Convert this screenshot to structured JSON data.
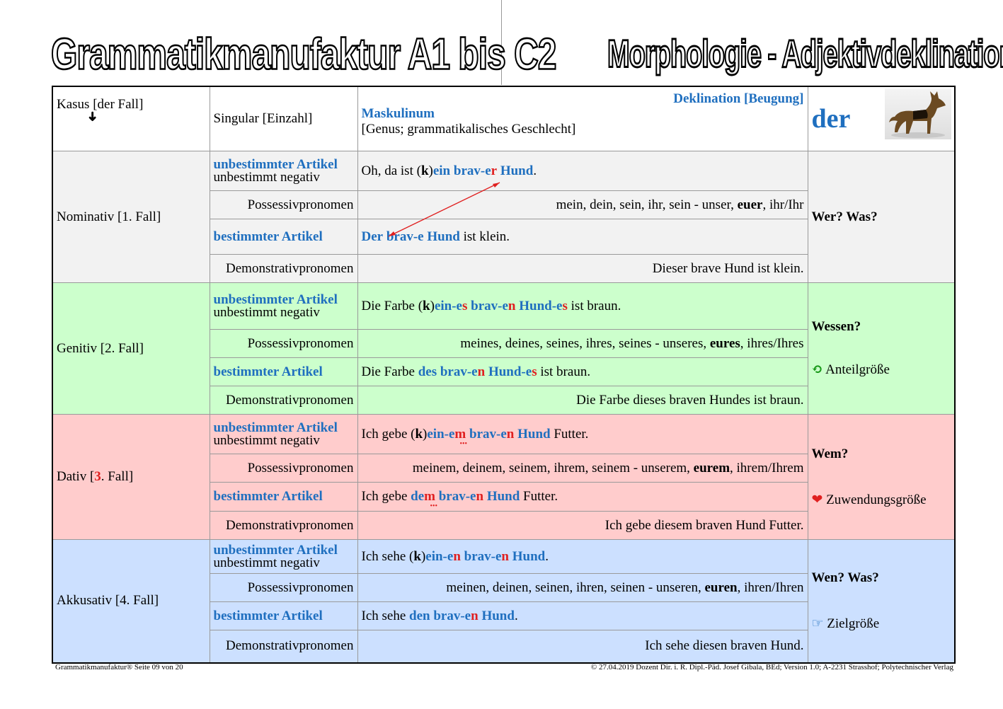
{
  "title_left": "Grammatikmanufaktur A1 bis C2",
  "title_right": "Morphologie - Adjektivdeklination I",
  "header": {
    "kasus": "Kasus [der Fall]",
    "arrow": "➜",
    "singular": "Singular [Einzahl]",
    "deklination": "Deklination [Beugung]",
    "maskulinum": "Maskulinum",
    "genus": "[Genus; grammatikalisches Geschlecht]",
    "article": "der"
  },
  "labels": {
    "unbest": "unbestimmter Artikel",
    "unbest_neg": "unbestimmt negativ",
    "poss": "Possessivpronomen",
    "best": "bestimmter Artikel",
    "demo": "Demonstrativpronomen"
  },
  "nom": {
    "case": "Nominativ [1. Fall]",
    "q": "Wer? Was?",
    "poss": "mein, dein, sein, ihr, sein - unser, ",
    "poss_b": "euer",
    "poss_end": ", ihr/Ihr",
    "demo": "Dieser brave Hund ist klein."
  },
  "gen": {
    "case": "Genitiv [2. Fall]",
    "q": "Wessen?",
    "extra": "Anteilgröße",
    "poss": "meines, deines, seines, ihres, seines - unseres, ",
    "poss_b": "eures",
    "poss_end": ", ihres/Ihres",
    "demo": "Die Farbe dieses braven Hundes ist braun."
  },
  "dat": {
    "case_a": "Dativ [",
    "case_n": "3",
    "case_b": ". Fall]",
    "q": "Wem?",
    "extra": "Zuwendungsgröße",
    "poss": "meinem, deinem, seinem, ihrem, seinem - unserem, ",
    "poss_b": "eurem",
    "poss_end": ", ihrem/Ihrem",
    "demo": "Ich gebe diesem braven Hund Futter."
  },
  "akk": {
    "case": "Akkusativ [4. Fall]",
    "q": "Wen? Was?",
    "extra": "Zielgröße",
    "poss": "meinen, deinen, seinen, ihren, seinen - unseren, ",
    "poss_b": "euren",
    "poss_end": ", ihren/Ihren",
    "demo": "Ich sehe diesen braven Hund."
  },
  "footer": {
    "left": "Grammatikmanufaktur®     Seite 09 von 20",
    "right": "© 27.04.2019 Dozent Dir. i. R. Dipl.-Päd. Josef Gibala, BEd; Version 1.0; A-2231 Strasshof; Polytechnischer Verlag"
  },
  "colors": {
    "blue": "#1f6fbf",
    "red": "#e02020",
    "nom": "#f2f2f2",
    "gen": "#ccffcc",
    "dat": "#ffcccc",
    "akk": "#cce0ff"
  }
}
